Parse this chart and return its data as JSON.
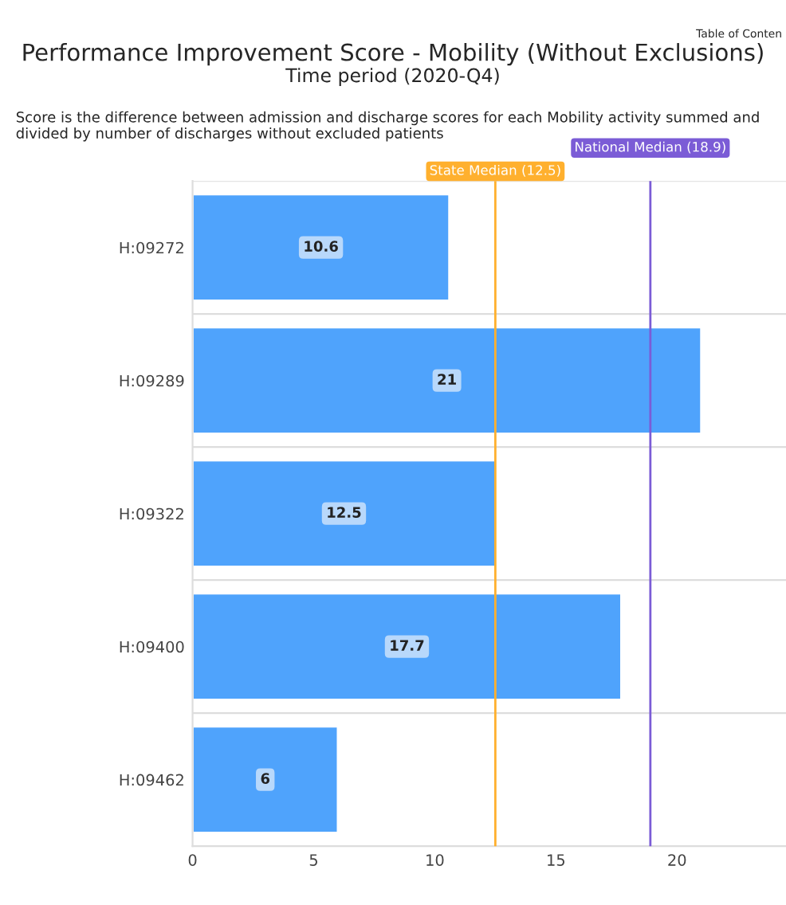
{
  "chart_data": {
    "type": "bar",
    "orientation": "horizontal",
    "title": "Performance Improvement Score - Mobility (Without Exclusions)",
    "subtitle": "Time period (2020-Q4)",
    "annotations": [
      "Table of Conten",
      "Score is the difference between admission and discharge scores for each Mobility activity summed and divided by number of discharges without excluded patients"
    ],
    "categories": [
      "H:09272",
      "H:09289",
      "H:09322",
      "H:09400",
      "H:09462"
    ],
    "values": [
      10.6,
      21,
      12.5,
      17.7,
      6
    ],
    "color": "#4fa3fc",
    "data_labels": true,
    "xlim": [
      0,
      24.5
    ],
    "xticks": [
      0,
      5,
      10,
      15,
      20
    ],
    "grid": "y",
    "ref_lines": [
      {
        "axis": "x",
        "value": 12.5,
        "label": "State Median (12.5)",
        "color": "#ffb02e"
      },
      {
        "axis": "x",
        "value": 18.9,
        "label": "National Median (18.9)",
        "color": "#7b5cd6"
      }
    ]
  }
}
